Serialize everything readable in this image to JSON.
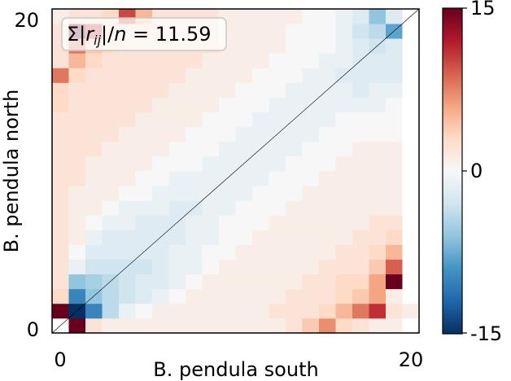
{
  "chart_data": {
    "type": "heatmap",
    "xlabel": "B. pendula south",
    "ylabel": "B. pendula north",
    "x_ticks": [
      "0",
      "20"
    ],
    "y_ticks": [
      "0",
      "20"
    ],
    "xlim": [
      0,
      20
    ],
    "ylim": [
      0,
      20
    ],
    "colorbar": {
      "min": -15,
      "max": 15,
      "ticks": [
        "-15",
        "0",
        "15"
      ],
      "colormap": "RdBu_r"
    },
    "annotation": "Σ|r_ij|/n = 11.59",
    "diagonal_line": true,
    "grid": false,
    "values": [
      [
        0,
        15,
        2,
        1,
        1,
        1,
        1,
        1,
        1,
        1,
        1,
        1,
        1,
        1,
        2,
        4,
        7,
        3,
        2,
        1,
        1,
        0
      ],
      [
        15,
        -15,
        -10,
        -4,
        -1,
        0,
        1,
        1,
        1,
        1,
        1,
        1,
        1,
        2,
        2,
        2,
        3,
        5,
        8,
        11,
        2,
        1
      ],
      [
        3,
        -10,
        -6,
        -4,
        -3,
        -2,
        -1,
        0,
        1,
        1,
        1,
        1,
        1,
        1,
        2,
        2,
        2,
        3,
        4,
        6,
        1,
        0
      ],
      [
        2,
        -6,
        -5,
        -4,
        -3,
        -2,
        -2,
        -1,
        0,
        1,
        1,
        1,
        1,
        1,
        1,
        2,
        2,
        3,
        3,
        6,
        15,
        0
      ],
      [
        2,
        -1,
        -3,
        -3,
        -3,
        -3,
        -2,
        -1,
        -1,
        0,
        1,
        1,
        1,
        1,
        1,
        1,
        2,
        2,
        2,
        4,
        9,
        0
      ],
      [
        2,
        0,
        -2,
        -2,
        -2,
        -2,
        -2,
        -1,
        -1,
        0,
        0,
        1,
        1,
        1,
        1,
        1,
        1,
        2,
        2,
        3,
        5,
        0
      ],
      [
        2,
        1,
        -1,
        -2,
        -2,
        -2,
        -2,
        -2,
        -1,
        -1,
        0,
        0,
        1,
        1,
        1,
        1,
        1,
        1,
        2,
        2,
        3,
        0
      ],
      [
        2,
        1,
        0,
        -1,
        -1,
        -2,
        -2,
        -2,
        -1,
        -1,
        0,
        0,
        0,
        1,
        1,
        1,
        1,
        1,
        1,
        2,
        2,
        0
      ],
      [
        2,
        1,
        1,
        0,
        -1,
        -1,
        -1,
        -2,
        -2,
        -1,
        -1,
        0,
        0,
        0,
        1,
        1,
        1,
        1,
        1,
        1,
        1,
        0
      ],
      [
        2,
        1,
        1,
        1,
        0,
        0,
        -1,
        -1,
        -1,
        -1,
        -1,
        -1,
        0,
        0,
        0,
        1,
        1,
        1,
        1,
        1,
        1,
        0
      ],
      [
        2,
        2,
        1,
        1,
        1,
        0,
        0,
        -1,
        -1,
        -1,
        -1,
        -1,
        -1,
        0,
        0,
        0,
        1,
        1,
        1,
        1,
        1,
        0
      ],
      [
        2,
        2,
        1,
        1,
        1,
        1,
        0,
        0,
        0,
        -1,
        -1,
        -1,
        -1,
        -1,
        0,
        0,
        0,
        1,
        1,
        1,
        1,
        0
      ],
      [
        2,
        2,
        2,
        1,
        1,
        1,
        1,
        0,
        0,
        0,
        -1,
        -1,
        -1,
        -1,
        -1,
        0,
        0,
        0,
        1,
        1,
        1,
        0
      ],
      [
        2,
        2,
        2,
        2,
        1,
        1,
        1,
        1,
        0,
        0,
        0,
        -1,
        -1,
        -1,
        -1,
        -1,
        0,
        0,
        0,
        0,
        0,
        0
      ],
      [
        2,
        2,
        2,
        2,
        2,
        1,
        1,
        1,
        1,
        0,
        0,
        0,
        -1,
        -1,
        -1,
        -1,
        -1,
        0,
        0,
        0,
        0,
        0
      ],
      [
        3,
        2,
        2,
        2,
        2,
        2,
        1,
        1,
        1,
        1,
        0,
        0,
        0,
        -1,
        -1,
        -1,
        -1,
        -1,
        -1,
        -1,
        0,
        0
      ],
      [
        3,
        2,
        2,
        2,
        2,
        2,
        2,
        1,
        1,
        1,
        1,
        0,
        0,
        0,
        -1,
        -1,
        -1,
        -1,
        -2,
        -1,
        -1,
        0
      ],
      [
        8,
        3,
        2,
        2,
        2,
        2,
        2,
        2,
        1,
        1,
        1,
        1,
        0,
        0,
        0,
        -1,
        -1,
        -2,
        -2,
        -2,
        -2,
        0
      ],
      [
        2,
        5,
        3,
        2,
        2,
        2,
        2,
        2,
        2,
        1,
        1,
        1,
        1,
        0,
        0,
        0,
        -1,
        -1,
        -2,
        -2,
        -2,
        0
      ],
      [
        2,
        8,
        4,
        3,
        2,
        2,
        2,
        2,
        2,
        2,
        1,
        1,
        1,
        1,
        0,
        0,
        0,
        -1,
        -2,
        -3,
        -2,
        0
      ],
      [
        2,
        15,
        11,
        3,
        2,
        3,
        2,
        2,
        2,
        2,
        1,
        1,
        1,
        1,
        0,
        0,
        0,
        -1,
        -3,
        -4,
        -8,
        0
      ],
      [
        1,
        2,
        2,
        3,
        10,
        5,
        2,
        2,
        2,
        2,
        1,
        1,
        1,
        1,
        1,
        0,
        0,
        -1,
        -2,
        -6,
        -2,
        0
      ]
    ]
  }
}
